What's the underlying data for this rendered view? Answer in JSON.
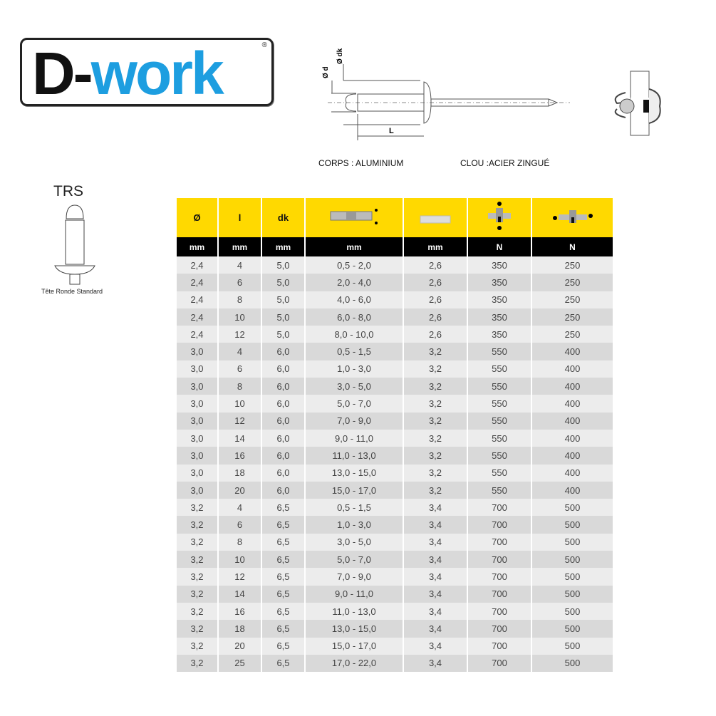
{
  "logo": {
    "text_d": "D-",
    "text_work": "work",
    "registered": "®",
    "colors": {
      "dark": "#111111",
      "blue": "#1d9ee0"
    }
  },
  "diagram": {
    "labels": {
      "od": "Ø d",
      "odk": "Ø dk",
      "L": "L"
    },
    "material_body": "CORPS : ALUMINIUM",
    "material_mandrel": "CLOU :ACIER ZINGUÉ"
  },
  "head_type": {
    "code": "TRS",
    "caption": "Tête Ronde Standard"
  },
  "table": {
    "header_colors": {
      "yellow": "#ffd900",
      "black": "#000000"
    },
    "headers": [
      "Ø",
      "l",
      "dk",
      "grip-range-icon",
      "hole-diameter-icon",
      "shear-strength-icon",
      "tensile-strength-icon"
    ],
    "units": [
      "mm",
      "mm",
      "mm",
      "mm",
      "mm",
      "N",
      "N"
    ],
    "rows": [
      [
        "2,4",
        "4",
        "5,0",
        "0,5 - 2,0",
        "2,6",
        "350",
        "250"
      ],
      [
        "2,4",
        "6",
        "5,0",
        "2,0 - 4,0",
        "2,6",
        "350",
        "250"
      ],
      [
        "2,4",
        "8",
        "5,0",
        "4,0 - 6,0",
        "2,6",
        "350",
        "250"
      ],
      [
        "2,4",
        "10",
        "5,0",
        "6,0 - 8,0",
        "2,6",
        "350",
        "250"
      ],
      [
        "2,4",
        "12",
        "5,0",
        "8,0 - 10,0",
        "2,6",
        "350",
        "250"
      ],
      [
        "3,0",
        "4",
        "6,0",
        "0,5 - 1,5",
        "3,2",
        "550",
        "400"
      ],
      [
        "3,0",
        "6",
        "6,0",
        "1,0 - 3,0",
        "3,2",
        "550",
        "400"
      ],
      [
        "3,0",
        "8",
        "6,0",
        "3,0 - 5,0",
        "3,2",
        "550",
        "400"
      ],
      [
        "3,0",
        "10",
        "6,0",
        "5,0 - 7,0",
        "3,2",
        "550",
        "400"
      ],
      [
        "3,0",
        "12",
        "6,0",
        "7,0 - 9,0",
        "3,2",
        "550",
        "400"
      ],
      [
        "3,0",
        "14",
        "6,0",
        "9,0 - 11,0",
        "3,2",
        "550",
        "400"
      ],
      [
        "3,0",
        "16",
        "6,0",
        "11,0 - 13,0",
        "3,2",
        "550",
        "400"
      ],
      [
        "3,0",
        "18",
        "6,0",
        "13,0 - 15,0",
        "3,2",
        "550",
        "400"
      ],
      [
        "3,0",
        "20",
        "6,0",
        "15,0 - 17,0",
        "3,2",
        "550",
        "400"
      ],
      [
        "3,2",
        "4",
        "6,5",
        "0,5 - 1,5",
        "3,4",
        "700",
        "500"
      ],
      [
        "3,2",
        "6",
        "6,5",
        "1,0 - 3,0",
        "3,4",
        "700",
        "500"
      ],
      [
        "3,2",
        "8",
        "6,5",
        "3,0 - 5,0",
        "3,4",
        "700",
        "500"
      ],
      [
        "3,2",
        "10",
        "6,5",
        "5,0 - 7,0",
        "3,4",
        "700",
        "500"
      ],
      [
        "3,2",
        "12",
        "6,5",
        "7,0 - 9,0",
        "3,4",
        "700",
        "500"
      ],
      [
        "3,2",
        "14",
        "6,5",
        "9,0 - 11,0",
        "3,4",
        "700",
        "500"
      ],
      [
        "3,2",
        "16",
        "6,5",
        "11,0 - 13,0",
        "3,4",
        "700",
        "500"
      ],
      [
        "3,2",
        "18",
        "6,5",
        "13,0 - 15,0",
        "3,4",
        "700",
        "500"
      ],
      [
        "3,2",
        "20",
        "6,5",
        "15,0 - 17,0",
        "3,4",
        "700",
        "500"
      ],
      [
        "3,2",
        "25",
        "6,5",
        "17,0 - 22,0",
        "3,4",
        "700",
        "500"
      ]
    ]
  }
}
